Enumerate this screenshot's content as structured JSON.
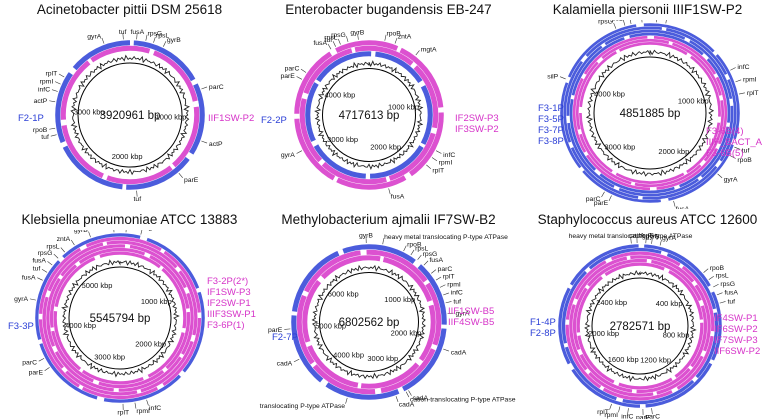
{
  "panels": [
    {
      "title": "Acinetobacter pittii DSM 25618",
      "size": "3920961 bp",
      "ticks": [
        "1000 kbp",
        "2000 kbp",
        "3000 kbp"
      ],
      "genes": [
        "gyrA",
        "tuf",
        "fusA",
        "rpsG",
        "rpsL",
        "gyrB",
        "parC",
        "actP",
        "tuf",
        "rpoB",
        "actP",
        "infC",
        "rpmI",
        "rplT",
        "tuf",
        "parE"
      ],
      "left_labels": [
        "F2-1P"
      ],
      "right_labels": [
        "IIF1SW-P2"
      ],
      "rings": [
        "#2b3fd6",
        "#d633c8"
      ]
    },
    {
      "title": "Enterobacter bugandensis EB-247",
      "size": "4717613 bp",
      "ticks": [
        "1000 kbp",
        "2000 kbp",
        "3000 kbp",
        "4000 kbp"
      ],
      "genes": [
        "gyrB",
        "rpoB",
        "zntA",
        "rpsL",
        "fusA",
        "tuf",
        "rpsG",
        "mgtA",
        "parE",
        "parC",
        "gyrA",
        "infC",
        "rpmI",
        "rplT",
        "fusA"
      ],
      "left_labels": [
        "F2-2P"
      ],
      "right_labels": [
        "IF2SW-P3",
        "IF3SW-P2"
      ],
      "rings": [
        "#d633c8",
        "#d633c8",
        "#2b3fd6"
      ]
    },
    {
      "title": "Kalamiella piersonii IIIF1SW-P2",
      "size": "4851885 bp",
      "ticks": [
        "1000 kbp",
        "2000 kbp",
        "3000 kbp",
        "4000 kbp"
      ],
      "genes": [
        "fusA",
        "tuf",
        "rpsG",
        "rpsL",
        "mgtA",
        "gyrB",
        "silP",
        "infC",
        "rpmI",
        "rplT",
        "tuf",
        "rpoB",
        "gyrA",
        "fusA",
        "parC",
        "parE"
      ],
      "left_labels": [
        "F3-1P",
        "F3-5P",
        "F3-7P",
        "F3-8P"
      ],
      "right_labels": [
        "F3-6B(4)",
        "IIIF_BACT_A",
        "F3-6B(5)"
      ],
      "rings": [
        "#2b3fd6",
        "#2b3fd6",
        "#2b3fd6",
        "#2b3fd6",
        "#d633c8",
        "#d633c8",
        "#d633c8"
      ]
    },
    {
      "title": "Klebsiella pneumoniae ATCC 13883",
      "size": "5545794 bp",
      "ticks": [
        "1000 kbp",
        "2000 kbp",
        "3000 kbp",
        "4000 kbp",
        "5000 kbp"
      ],
      "genes": [
        "rpoB",
        "tuf",
        "mgtA",
        "gyrB",
        "zntA",
        "rpsL",
        "rpsG",
        "fusA",
        "tuf",
        "fusA",
        "gyrA",
        "parC",
        "parE",
        "infC",
        "rpmI",
        "rplT"
      ],
      "left_labels": [
        "F3-3P"
      ],
      "right_labels": [
        "F3-2P(2*)",
        "IF1SW-P3",
        "IF2SW-P1",
        "IIIF3SW-P1",
        "F3-6P(1)"
      ],
      "rings": [
        "#2b3fd6",
        "#d633c8",
        "#d633c8",
        "#d633c8",
        "#d633c8",
        "#d633c8"
      ]
    },
    {
      "title": "Methylobacterium ajmalii IF7SW-B2",
      "size": "6802562 bp",
      "ticks": [
        "1000 kbp",
        "2000 kbp",
        "3000 kbp",
        "4000 kbp",
        "5000 kbp",
        "6000 kbp"
      ],
      "genes": [
        "gyrB",
        "heavy metal translocating P-type ATPase",
        "rpoB",
        "rpsL",
        "rpsG",
        "fusA",
        "parC",
        "rplT",
        "rpmI",
        "infC",
        "tuf",
        "gyrA",
        "cadA",
        "cadA",
        "cation-translocating P-type ATPase",
        "cadA",
        "heavy metal translocating P-type ATPase",
        "cadA",
        "parE"
      ],
      "left_labels": [
        "F2-7P"
      ],
      "right_labels": [
        "IIF1SW-B5",
        "IIF4SW-B5"
      ],
      "rings": [
        "#2b3fd6",
        "#d633c8",
        "#d633c8"
      ]
    },
    {
      "title": "Staphylococcus aureus ATCC 12600",
      "size": "2782571 bp",
      "ticks": [
        "400 kbp",
        "800 kbp",
        "1200 kbp",
        "1600 kbp",
        "2000 kbp",
        "2400 kbp"
      ],
      "genes": [
        "heavy metal translocating P-type ATPase",
        "cadA",
        "copB",
        "gyrB",
        "gyrA",
        "rpoB",
        "rpsL",
        "rpsG",
        "fusA",
        "tuf",
        "parC",
        "parE",
        "infC",
        "rpmI",
        "rplT"
      ],
      "left_labels": [
        "F1-4P",
        "F2-8P"
      ],
      "right_labels": [
        "IF4SW-P1",
        "IF6SW-P2",
        "IF7SW-P3",
        "IIF6SW-P2"
      ],
      "rings": [
        "#2b3fd6",
        "#2b3fd6",
        "#d633c8",
        "#d633c8",
        "#d633c8",
        "#d633c8"
      ]
    }
  ],
  "colors": {
    "blue": "#2b3fd6",
    "pink": "#d633c8"
  }
}
